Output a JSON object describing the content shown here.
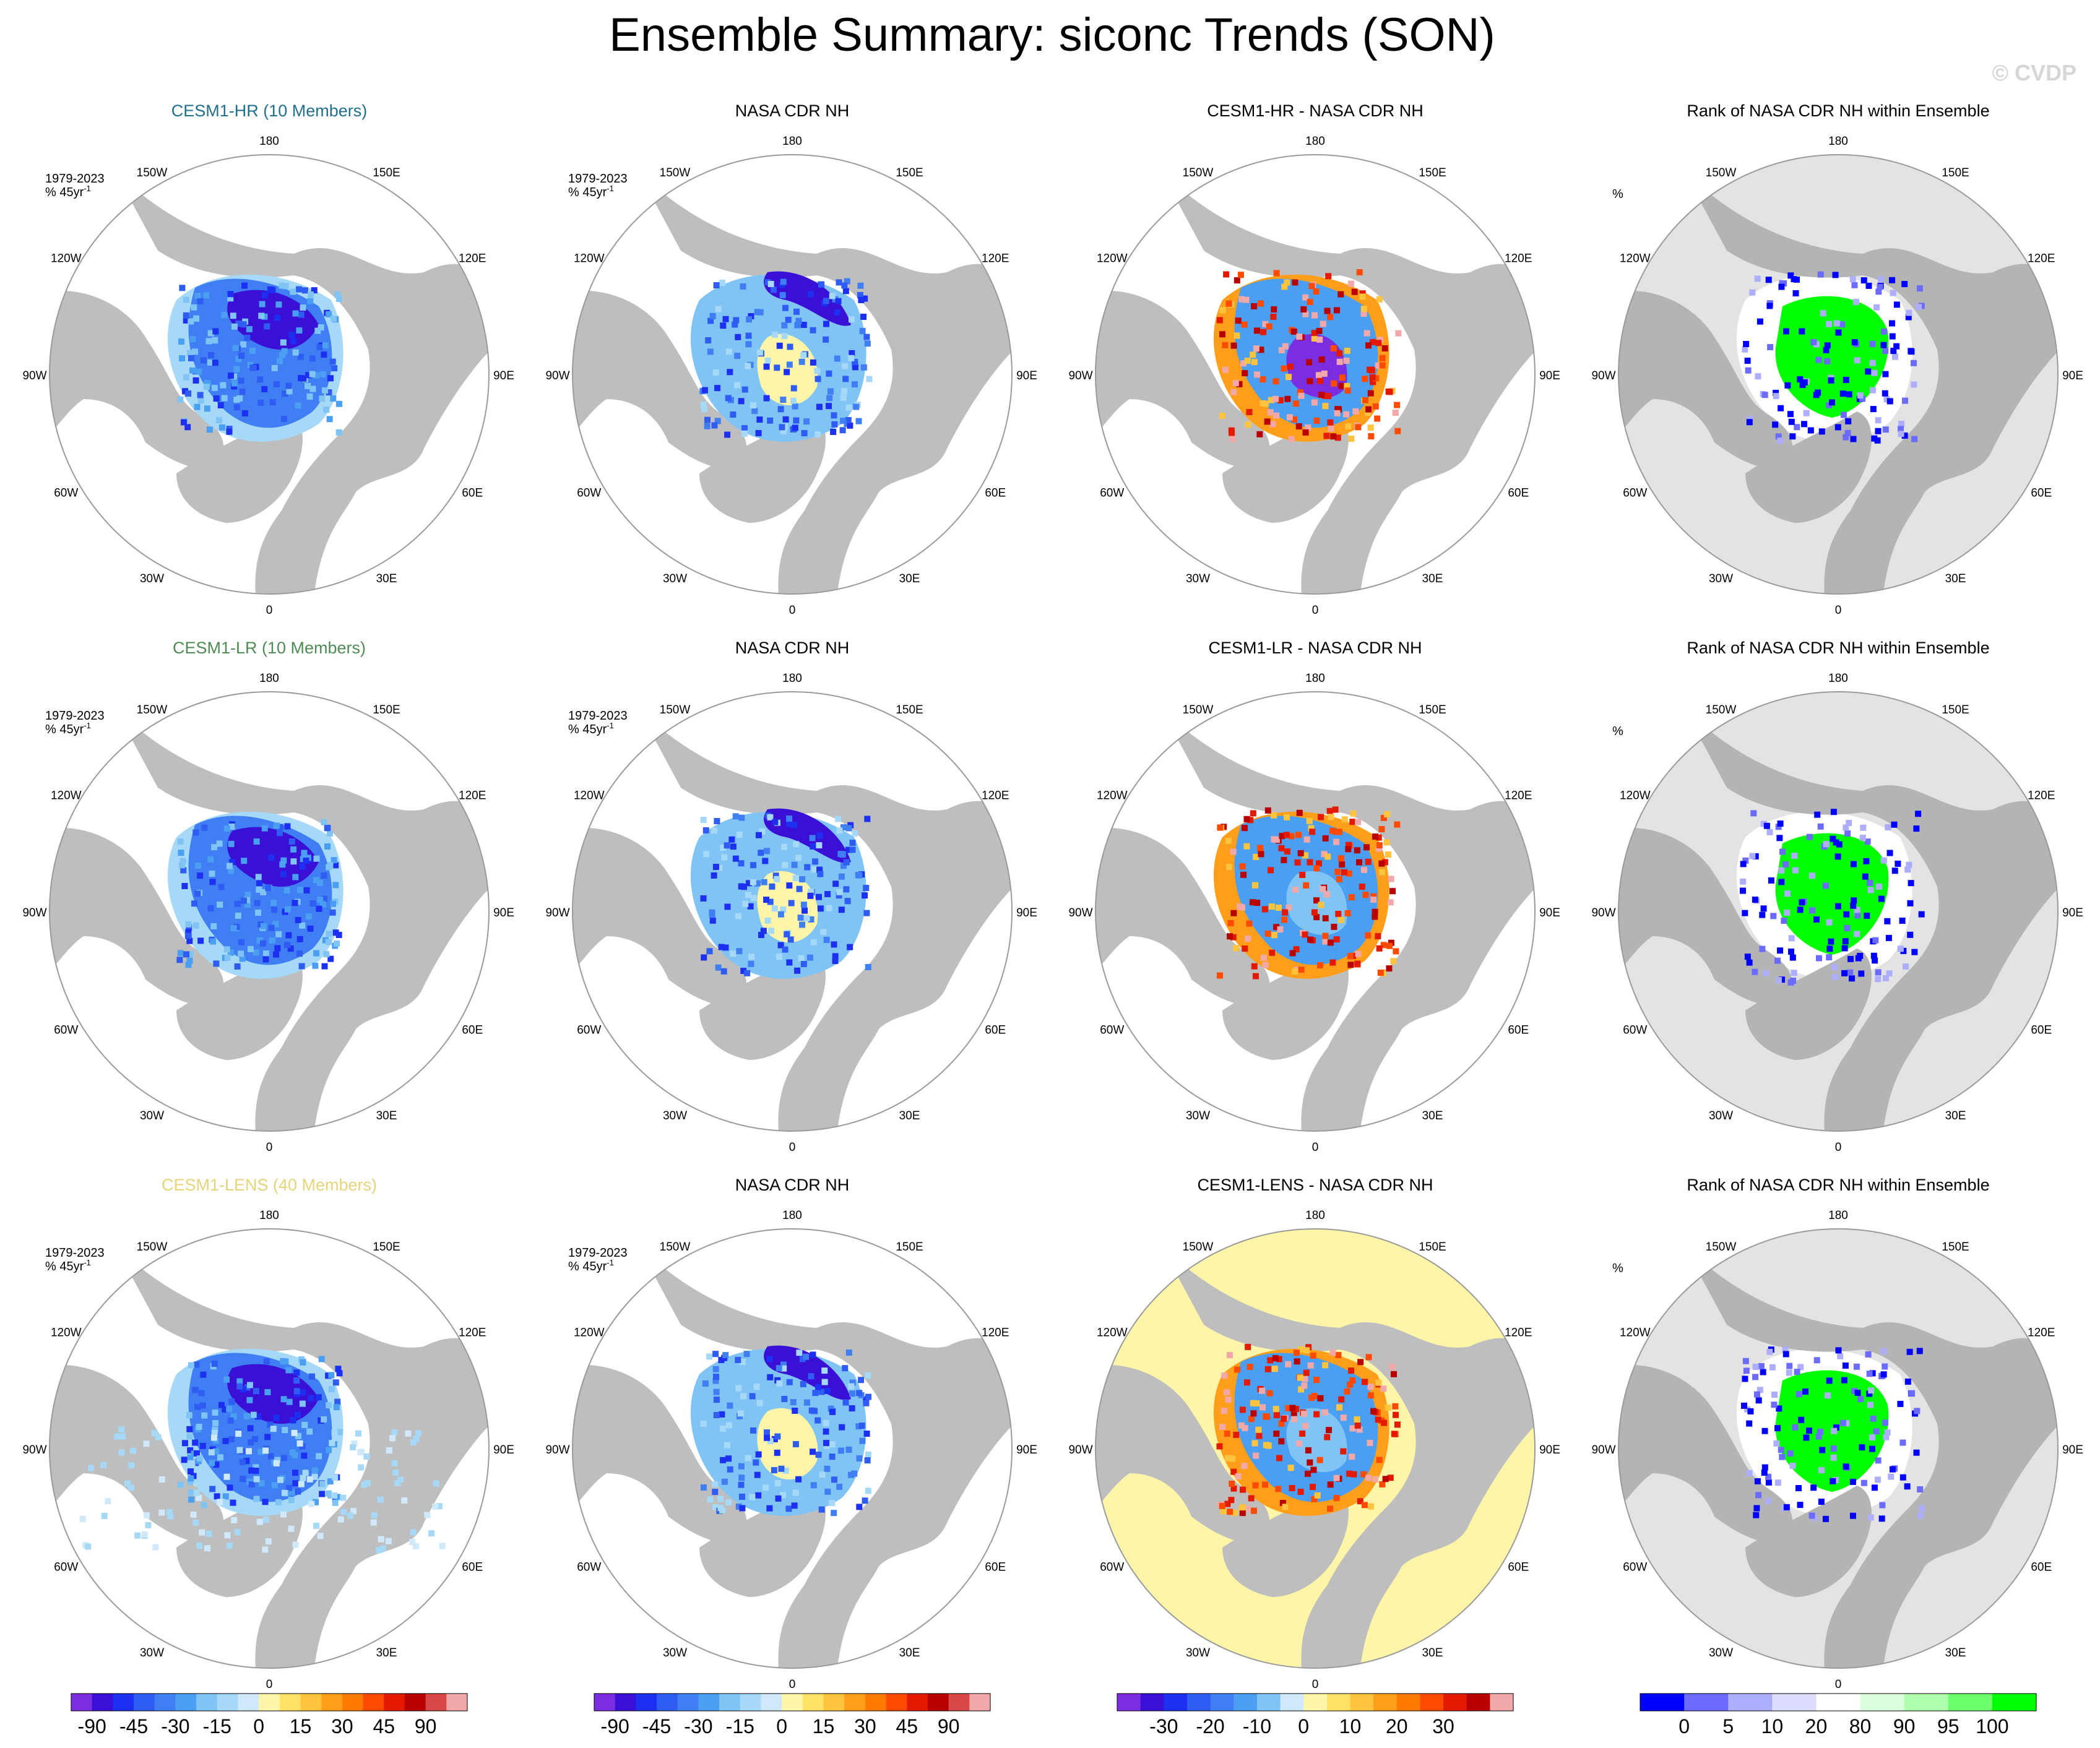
{
  "title": "Ensemble Summary: siconc Trends (SON)",
  "watermark": "© CVDP",
  "colors": {
    "land": "#bebebe",
    "ocean": "#ffffff",
    "rank_bg": "#e3e3e3",
    "hr_title": "#1f6f8f",
    "lr_title": "#4f8a57",
    "lens_title": "#e6d47a"
  },
  "chart_data": [
    {
      "type": "map",
      "projection": "north polar stereographic",
      "lon_labels": [
        "180",
        "150E",
        "120E",
        "90E",
        "60E",
        "30E",
        "0",
        "30W",
        "60W",
        "90W",
        "120W",
        "150W"
      ],
      "rows": [
        {
          "model": "CESM1-HR (10 Members)",
          "model_color": "#1f6f8f",
          "panels": [
            {
              "title": "CESM1-HR (10 Members)",
              "annot_period": "1979-2023",
              "annot_units": "% 45yr",
              "annot_sup": "-1",
              "pattern": "model"
            },
            {
              "title": "NASA CDR NH",
              "annot_period": "1979-2023",
              "annot_units": "% 45yr",
              "annot_sup": "-1",
              "pattern": "obs"
            },
            {
              "title": "CESM1-HR - NASA CDR NH",
              "pattern": "diff"
            },
            {
              "title": "Rank of NASA CDR NH within Ensemble",
              "annot_units": "%",
              "pattern": "rank"
            }
          ]
        },
        {
          "model": "CESM1-LR (10 Members)",
          "model_color": "#4f8a57",
          "panels": [
            {
              "title": "CESM1-LR (10 Members)",
              "annot_period": "1979-2023",
              "annot_units": "% 45yr",
              "annot_sup": "-1",
              "pattern": "model"
            },
            {
              "title": "NASA CDR NH",
              "annot_period": "1979-2023",
              "annot_units": "% 45yr",
              "annot_sup": "-1",
              "pattern": "obs"
            },
            {
              "title": "CESM1-LR - NASA CDR NH",
              "pattern": "diff"
            },
            {
              "title": "Rank of NASA CDR NH within Ensemble",
              "annot_units": "%",
              "pattern": "rank"
            }
          ]
        },
        {
          "model": "CESM1-LENS (40 Members)",
          "model_color": "#e6d47a",
          "panels": [
            {
              "title": "CESM1-LENS (40 Members)",
              "annot_period": "1979-2023",
              "annot_units": "% 45yr",
              "annot_sup": "-1",
              "pattern": "model"
            },
            {
              "title": "NASA CDR NH",
              "annot_period": "1979-2023",
              "annot_units": "% 45yr",
              "annot_sup": "-1",
              "pattern": "obs"
            },
            {
              "title": "CESM1-LENS - NASA CDR NH",
              "pattern": "diff_lens"
            },
            {
              "title": "Rank of NASA CDR NH within Ensemble",
              "annot_units": "%",
              "pattern": "rank"
            }
          ]
        }
      ],
      "colorbars": [
        {
          "name": "trend",
          "labels": [
            "-90",
            "-45",
            "-30",
            "-15",
            "0",
            "15",
            "30",
            "45",
            "90"
          ],
          "colors": [
            "#7b2ee0",
            "#3a0fd6",
            "#1d2ff0",
            "#2f5cf2",
            "#3f7ff3",
            "#4b9ff2",
            "#7fc4f5",
            "#a6d8f7",
            "#cfe9fb",
            "#fff5a8",
            "#ffe266",
            "#ffc43d",
            "#ff9e1a",
            "#ff7a00",
            "#ff4a00",
            "#e31a00",
            "#b80000",
            "#d94848",
            "#f2a8a8"
          ]
        },
        {
          "name": "trend",
          "labels": [
            "-90",
            "-45",
            "-30",
            "-15",
            "0",
            "15",
            "30",
            "45",
            "90"
          ],
          "colors": [
            "#7b2ee0",
            "#3a0fd6",
            "#1d2ff0",
            "#2f5cf2",
            "#3f7ff3",
            "#4b9ff2",
            "#7fc4f5",
            "#a6d8f7",
            "#cfe9fb",
            "#fff5a8",
            "#ffe266",
            "#ffc43d",
            "#ff9e1a",
            "#ff7a00",
            "#ff4a00",
            "#e31a00",
            "#b80000",
            "#d94848",
            "#f2a8a8"
          ]
        },
        {
          "name": "difference",
          "labels": [
            "-30",
            "-20",
            "-10",
            "0",
            "10",
            "20",
            "30"
          ],
          "colors": [
            "#7b2ee0",
            "#3a0fd6",
            "#1d2ff0",
            "#2f5cf2",
            "#3f7ff3",
            "#4b9ff2",
            "#7fc4f5",
            "#cfe9fb",
            "#fff5a8",
            "#ffe266",
            "#ffc43d",
            "#ff9e1a",
            "#ff7a00",
            "#ff4a00",
            "#e31a00",
            "#b80000",
            "#f2a8a8"
          ]
        },
        {
          "name": "rank",
          "labels": [
            "0",
            "5",
            "10",
            "20",
            "80",
            "90",
            "95",
            "100"
          ],
          "colors": [
            "#0000ff",
            "#6b6bff",
            "#aeaeff",
            "#dcdcff",
            "#ffffff",
            "#dcffdc",
            "#aeffae",
            "#6bff6b",
            "#00ff00"
          ]
        }
      ]
    }
  ]
}
